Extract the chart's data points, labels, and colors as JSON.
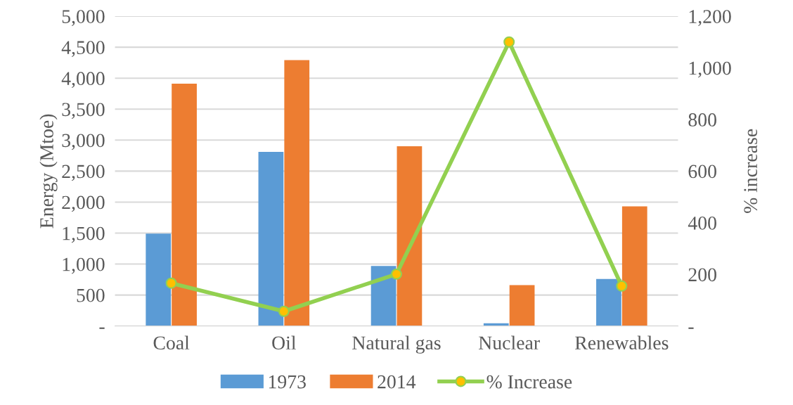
{
  "chart_data": {
    "type": "bar",
    "ylabel": "Energy (Mtoe)",
    "y2label": "% increase",
    "categories": [
      "Coal",
      "Oil",
      "Natural gas",
      "Nuclear",
      "Renewables"
    ],
    "series": [
      {
        "name": "1973",
        "color": "#5b9bd5",
        "values": [
          1490,
          2810,
          970,
          45,
          760
        ]
      },
      {
        "name": "2014",
        "color": "#ed7d31",
        "values": [
          3910,
          4290,
          2900,
          660,
          1930
        ]
      },
      {
        "name": "% Increase",
        "type": "line",
        "axis": "y2",
        "color": "#92d050",
        "marker": "circle",
        "values": [
          166,
          57,
          201,
          1100,
          155
        ]
      }
    ],
    "ylim": [
      0,
      5000
    ],
    "yticks": [
      {
        "value": 0,
        "label": "-"
      },
      {
        "value": 500,
        "label": "500"
      },
      {
        "value": 1000,
        "label": "1,000"
      },
      {
        "value": 1500,
        "label": "1,500"
      },
      {
        "value": 2000,
        "label": "2,000"
      },
      {
        "value": 2500,
        "label": "2,500"
      },
      {
        "value": 3000,
        "label": "3,000"
      },
      {
        "value": 3500,
        "label": "3,500"
      },
      {
        "value": 4000,
        "label": "4,000"
      },
      {
        "value": 4500,
        "label": "4,500"
      },
      {
        "value": 5000,
        "label": "5,000"
      }
    ],
    "y2lim": [
      0,
      1200
    ],
    "y2ticks": [
      {
        "value": 0,
        "label": "-"
      },
      {
        "value": 200,
        "label": "200"
      },
      {
        "value": 400,
        "label": "400"
      },
      {
        "value": 600,
        "label": "600"
      },
      {
        "value": 800,
        "label": "800"
      },
      {
        "value": 1000,
        "label": "1,000"
      },
      {
        "value": 1200,
        "label": "1,200"
      }
    ],
    "grid": "y",
    "legend": "bottom"
  }
}
